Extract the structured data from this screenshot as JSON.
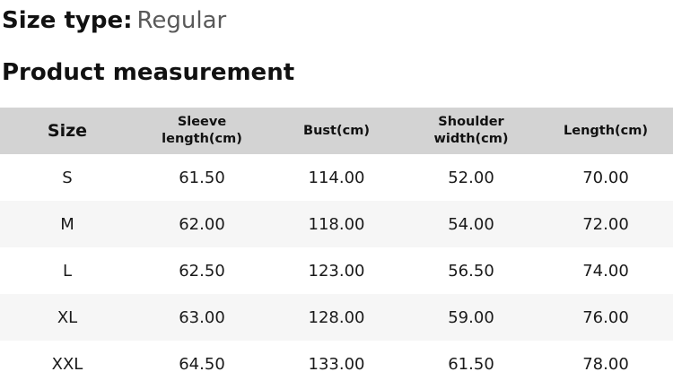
{
  "header": {
    "size_type_label": "Size type:",
    "size_type_value": "Regular",
    "section_title": "Product measurement"
  },
  "table": {
    "columns": [
      "Size",
      "Sleeve length(cm)",
      "Bust(cm)",
      "Shoulder width(cm)",
      "Length(cm)"
    ],
    "rows": [
      [
        "S",
        "61.50",
        "114.00",
        "52.00",
        "70.00"
      ],
      [
        "M",
        "62.00",
        "118.00",
        "54.00",
        "72.00"
      ],
      [
        "L",
        "62.50",
        "123.00",
        "56.50",
        "74.00"
      ],
      [
        "XL",
        "63.00",
        "128.00",
        "59.00",
        "76.00"
      ],
      [
        "XXL",
        "64.50",
        "133.00",
        "61.50",
        "78.00"
      ]
    ]
  },
  "colors": {
    "header_row_bg": "#d3d3d3",
    "zebra_row_bg": "#f6f6f6",
    "muted_text": "#595959",
    "text": "#111111"
  }
}
